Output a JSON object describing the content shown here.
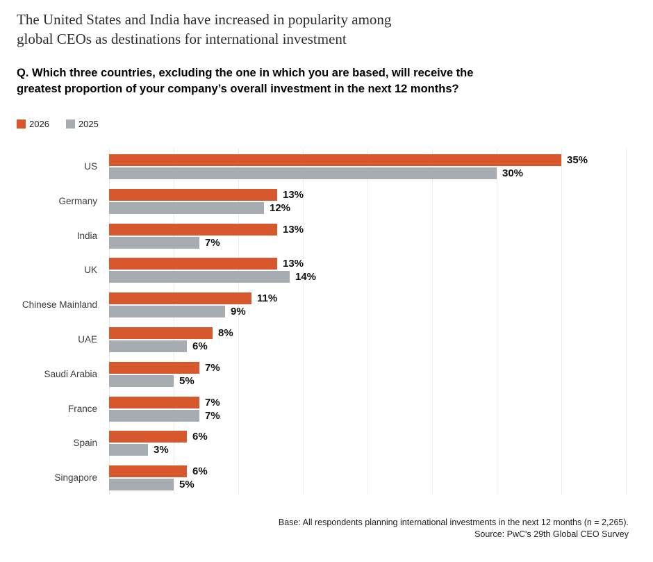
{
  "title": "The United States and India have increased in popularity among\nglobal CEOs as destinations for international investment",
  "question": "Q. Which three countries, excluding the one in which you are based, will receive the\ngreatest proportion of your company’s overall investment in the next 12 months?",
  "legend": [
    {
      "label": "2026",
      "color": "#D6582C"
    },
    {
      "label": "2025",
      "color": "#A7ABB2"
    }
  ],
  "footer": {
    "base_note": "Base: All respondents planning international investments in the next 12 months (n = 2,265).",
    "source_note": "Source: PwC's 29th Global CEO Survey"
  },
  "chart_data": {
    "type": "bar",
    "orientation": "horizontal",
    "title": "The United States and India have increased in popularity among global CEOs as destinations for international investment",
    "subtitle": "Q. Which three countries, excluding the one in which you are based, will receive the greatest proportion of your company’s overall investment in the next 12 months?",
    "categories": [
      "US",
      "Germany",
      "India",
      "UK",
      "Chinese Mainland",
      "UAE",
      "Saudi Arabia",
      "France",
      "Spain",
      "Singapore"
    ],
    "series": [
      {
        "name": "2026",
        "color": "#D6582C",
        "values": [
          35,
          13,
          13,
          13,
          11,
          8,
          7,
          7,
          6,
          6
        ]
      },
      {
        "name": "2025",
        "color": "#A7ABB2",
        "values": [
          30,
          12,
          7,
          14,
          9,
          6,
          5,
          7,
          3,
          5
        ]
      }
    ],
    "value_suffix": "%",
    "xlabel": "",
    "ylabel": "",
    "xlim": [
      0,
      40
    ],
    "gridlines_every": 5,
    "grid": "vertical-only",
    "legend_position": "top-left",
    "value_labels": "outside-end"
  }
}
